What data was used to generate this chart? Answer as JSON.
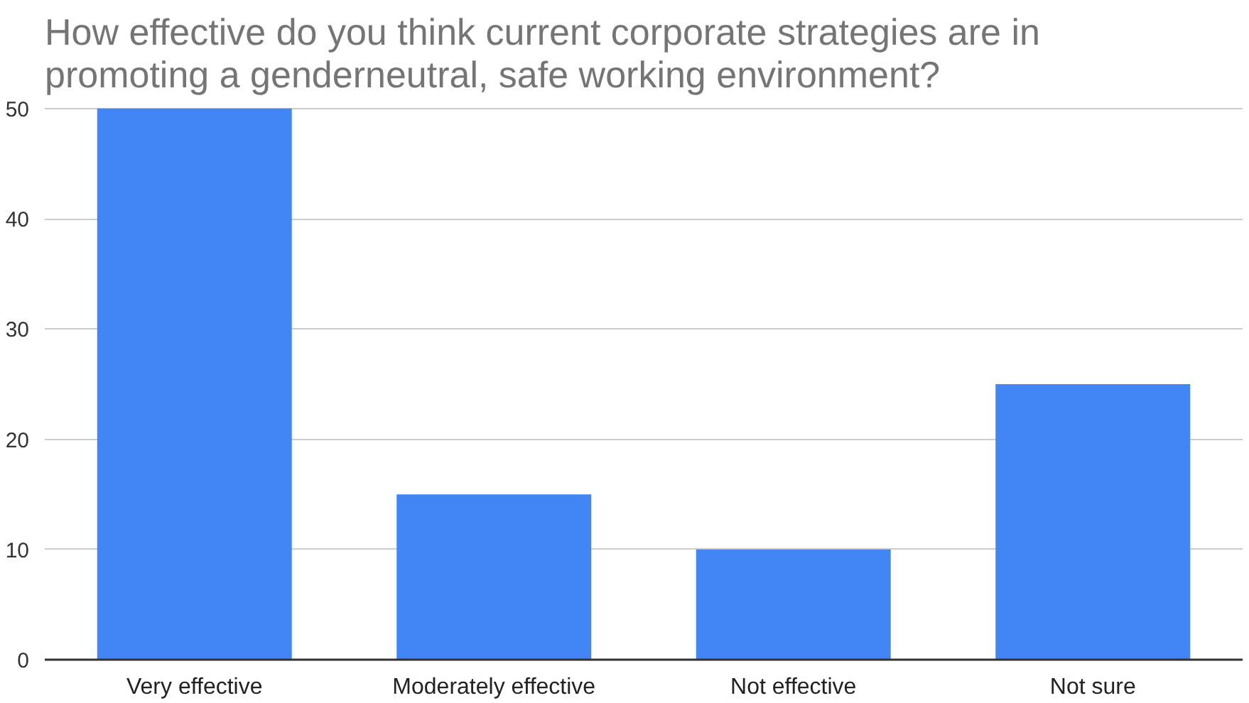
{
  "chart_data": {
    "type": "bar",
    "title": "How effective do you think current corporate strategies are in promoting a genderneutral, safe working environment?",
    "categories": [
      "Very effective",
      "Moderately effective",
      "Not effective",
      "Not sure"
    ],
    "values": [
      50,
      15,
      10,
      25
    ],
    "color": "#4285f4",
    "ylim": [
      0,
      50
    ],
    "yticks": [
      0,
      10,
      20,
      30,
      40,
      50
    ],
    "grid": "y"
  }
}
